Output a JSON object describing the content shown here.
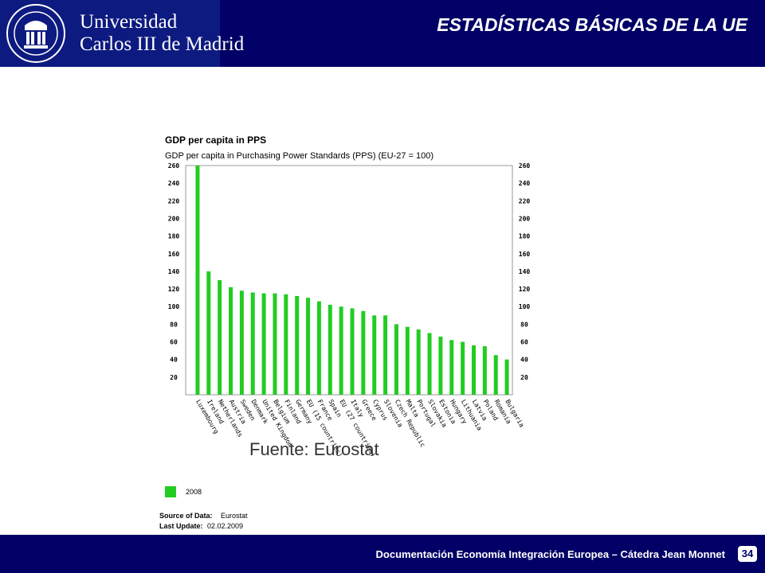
{
  "header": {
    "university_line1": "Universidad",
    "university_line2": "Carlos III de Madrid",
    "slide_title": "ESTADÍSTICAS BÁSICAS DE LA UE",
    "logo_icon": "university-seal-icon",
    "background_color": "#000066"
  },
  "footer": {
    "text": "Documentación Economía Integración Europea – Cátedra Jean Monnet",
    "page_number": "34"
  },
  "chart_data": {
    "type": "bar",
    "title": "GDP per capita in PPS",
    "subtitle": "GDP per capita in Purchasing Power Standards (PPS) (EU-27 = 100)",
    "categories": [
      "Luxembourg",
      "Ireland",
      "Netherlands",
      "Austria",
      "Sweden",
      "Denmark",
      "United Kingdom",
      "Belgium",
      "Finland",
      "Germany",
      "EU (15 countries)",
      "France",
      "Spain",
      "EU (27 countries)",
      "Italy",
      "Greece",
      "Cyprus",
      "Slovenia",
      "Czech Republic",
      "Malta",
      "Portugal",
      "Slovakia",
      "Estonia",
      "Hungary",
      "Lithuania",
      "Latvia",
      "Poland",
      "Romania",
      "Bulgaria"
    ],
    "series": [
      {
        "name": "2008",
        "color": "#22cc22",
        "values": [
          260,
          140,
          130,
          122,
          118,
          116,
          115,
          115,
          114,
          112,
          110,
          106,
          102,
          100,
          98,
          95,
          90,
          90,
          80,
          77,
          74,
          70,
          66,
          62,
          60,
          56,
          55,
          45,
          40
        ]
      }
    ],
    "ylim": [
      0,
      260
    ],
    "yticks": [
      20,
      40,
      60,
      80,
      100,
      120,
      140,
      160,
      180,
      200,
      220,
      240,
      260
    ],
    "annotation": "Fuente:  Eurostat",
    "legend": {
      "label": "2008",
      "placement": "bottom-left"
    },
    "source_label": "Source of Data:",
    "source_value": "Eurostat",
    "update_label": "Last Update:",
    "update_value": "02.02.2009",
    "grid": false
  }
}
